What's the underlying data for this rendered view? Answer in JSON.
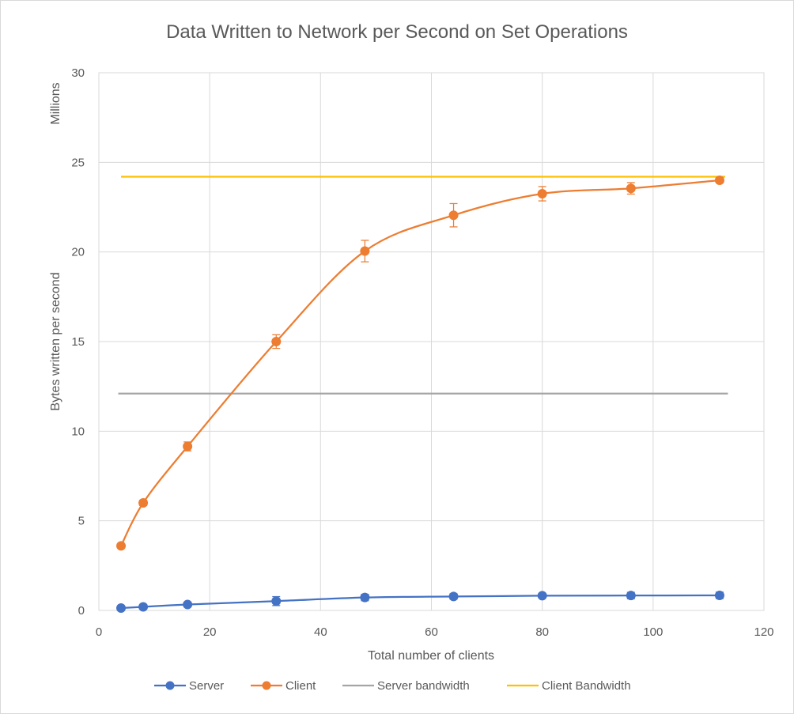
{
  "chart_data": {
    "type": "line",
    "title": "Data Written to Network per Second on Set Operations",
    "xlabel": "Total number of clients",
    "ylabel": "Bytes written per second",
    "y_unit_label": "Millions",
    "xlim": [
      0,
      120
    ],
    "ylim": [
      0,
      30
    ],
    "x_ticks": [
      "0",
      "20",
      "40",
      "60",
      "80",
      "100",
      "120"
    ],
    "y_ticks": [
      "0",
      "5",
      "10",
      "15",
      "20",
      "25",
      "30"
    ],
    "grid": true,
    "legend_position": "bottom",
    "series": [
      {
        "name": "Server",
        "color": "#4472c4",
        "marker": true,
        "x": [
          4,
          8,
          16,
          32,
          48,
          64,
          80,
          96,
          112
        ],
        "y": [
          0.13,
          0.2,
          0.33,
          0.52,
          0.72,
          0.78,
          0.82,
          0.83,
          0.84
        ],
        "err": [
          0.08,
          0.07,
          0.1,
          0.25,
          0.18,
          0.15,
          0.1,
          0.18,
          0.18
        ]
      },
      {
        "name": "Client",
        "color": "#ed7d31",
        "marker": true,
        "x": [
          4,
          8,
          16,
          32,
          48,
          64,
          80,
          96,
          112
        ],
        "y": [
          3.6,
          6.0,
          9.15,
          15.0,
          20.05,
          22.05,
          23.25,
          23.55,
          24.0
        ],
        "err": [
          0.12,
          0.15,
          0.25,
          0.38,
          0.6,
          0.65,
          0.4,
          0.32,
          0.15
        ]
      },
      {
        "name": "Server bandwidth",
        "color": "#a5a5a5",
        "marker": false,
        "x": [
          3.5,
          113.5
        ],
        "y": [
          12.1,
          12.1
        ]
      },
      {
        "name": "Client Bandwidth",
        "color": "#ffc000",
        "marker": false,
        "x": [
          4,
          113
        ],
        "y": [
          24.2,
          24.2
        ]
      }
    ]
  }
}
